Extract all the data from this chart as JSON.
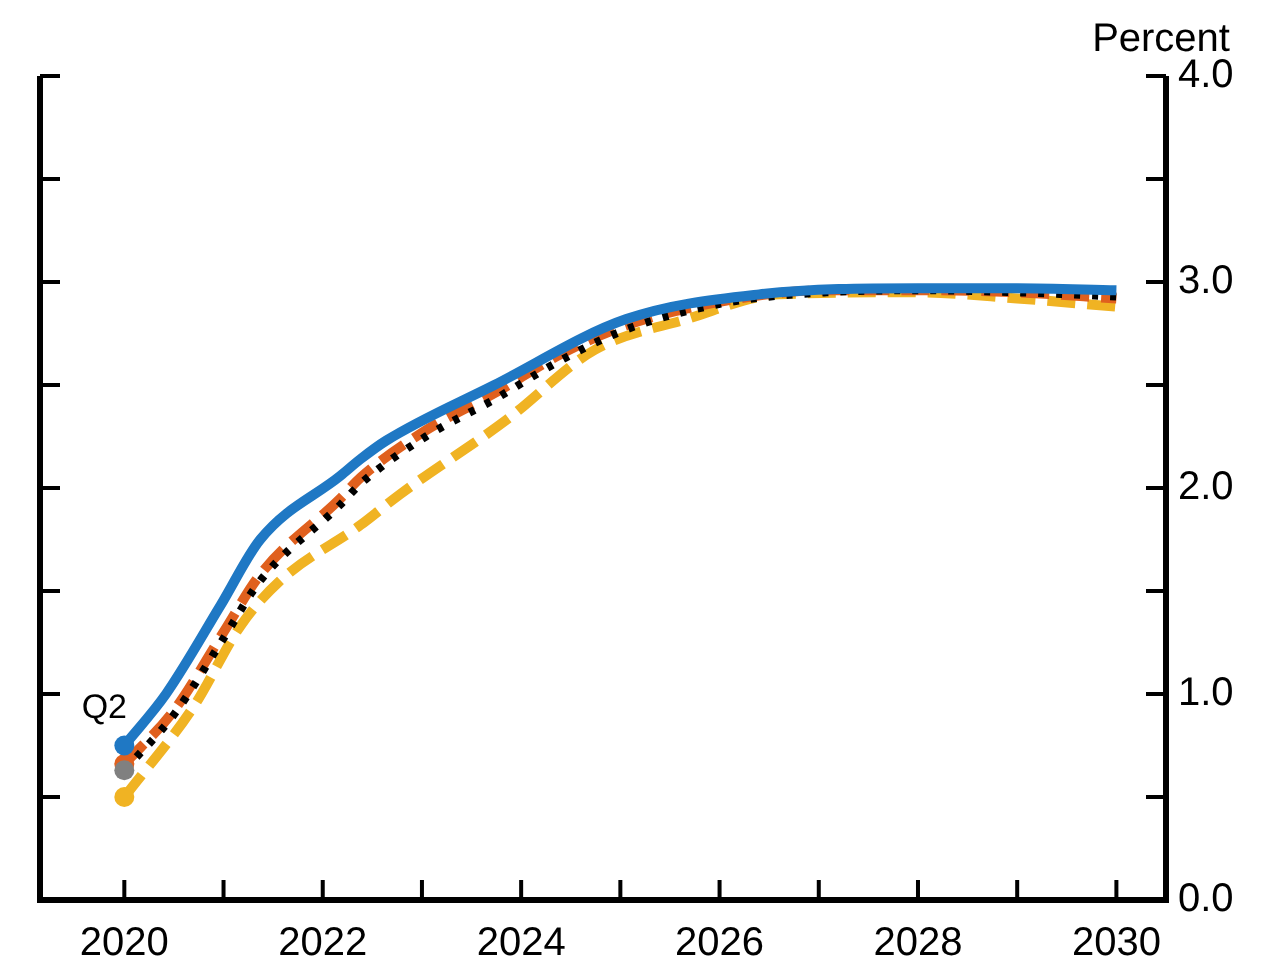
{
  "chart_data": {
    "type": "line",
    "ylabel": "Percent",
    "xlim": [
      2019.15,
      2030.5
    ],
    "xticks": [
      2020,
      {
        "value": 2021,
        "label": null
      },
      2022,
      {
        "value": 2023,
        "label": null
      },
      2024,
      {
        "value": 2025,
        "label": null
      },
      2026,
      {
        "value": 2027,
        "label": null
      },
      2028,
      {
        "value": 2029,
        "label": null
      },
      2030
    ],
    "ylim": [
      0,
      4
    ],
    "yticks": [
      "0.0",
      {
        "value": 0.5,
        "label": null
      },
      {
        "value": 1,
        "label": "1.0"
      },
      {
        "value": 1.5,
        "label": null
      },
      {
        "value": 2,
        "label": "2.0"
      },
      {
        "value": 2.5,
        "label": null
      },
      {
        "value": 3,
        "label": "3.0"
      },
      {
        "value": 3.5,
        "label": null
      },
      {
        "value": 4,
        "label": "4.0"
      }
    ],
    "series": [
      {
        "color": "#f0b323",
        "line_style": "dashed",
        "x": [
          2020,
          2020.7,
          2021.17,
          2021.57,
          2022.38,
          2022.78,
          2023.85,
          2024.74,
          2025.67,
          2026.6,
          2028,
          2029,
          2030
        ],
        "values": [
          0.5,
          0.94,
          1.33,
          1.55,
          1.82,
          1.97,
          2.33,
          2.67,
          2.82,
          2.94,
          2.95,
          2.92,
          2.88
        ]
      },
      {
        "color": "#e0601e",
        "line_style": "dashed",
        "x": [
          2020,
          2020.5,
          2021,
          2021.37,
          2022.18,
          2022.38,
          2023.04,
          2023.73,
          2024.4,
          2025.06,
          2026.07,
          2027.08,
          2028,
          2029,
          2030
        ],
        "values": [
          0.66,
          0.92,
          1.3,
          1.58,
          1.95,
          2.05,
          2.28,
          2.46,
          2.65,
          2.79,
          2.91,
          2.96,
          2.96,
          2.95,
          2.92
        ]
      },
      {
        "color": "#000000",
        "line_style": "dotted",
        "x": [
          2020,
          2020.5,
          2021,
          2021.37,
          2022.18,
          2022.38,
          2023.04,
          2023.73,
          2024.4,
          2025.06,
          2026.07,
          2027.08,
          2028,
          2029,
          2030
        ],
        "values": [
          0.63,
          0.9,
          1.27,
          1.55,
          1.92,
          2.02,
          2.25,
          2.43,
          2.62,
          2.77,
          2.9,
          2.95,
          2.96,
          2.95,
          2.93
        ]
      },
      {
        "color": "#1f78c4",
        "line_style": "solid",
        "x": [
          2020,
          2020.42,
          2020.97,
          2021.37,
          2022.18,
          2022.38,
          2022.64,
          2023.73,
          2025.06,
          2026.4,
          2028,
          2029,
          2030
        ],
        "values": [
          0.75,
          1.0,
          1.43,
          1.75,
          2.06,
          2.14,
          2.23,
          2.5,
          2.82,
          2.94,
          2.97,
          2.97,
          2.96
        ]
      },
      {
        "type": "scatter",
        "marker": "circle",
        "x": [
          2020,
          2020,
          2020,
          2020
        ],
        "values": [
          0.5,
          0.66,
          0.63,
          0.75
        ],
        "colors": [
          "#f0b323",
          "#e0601e",
          "#808080",
          "#1f78c4"
        ]
      }
    ],
    "annotations": [
      {
        "text": "Q2",
        "x": 2020,
        "y": 0.75
      }
    ],
    "grid": false,
    "legend": false
  }
}
